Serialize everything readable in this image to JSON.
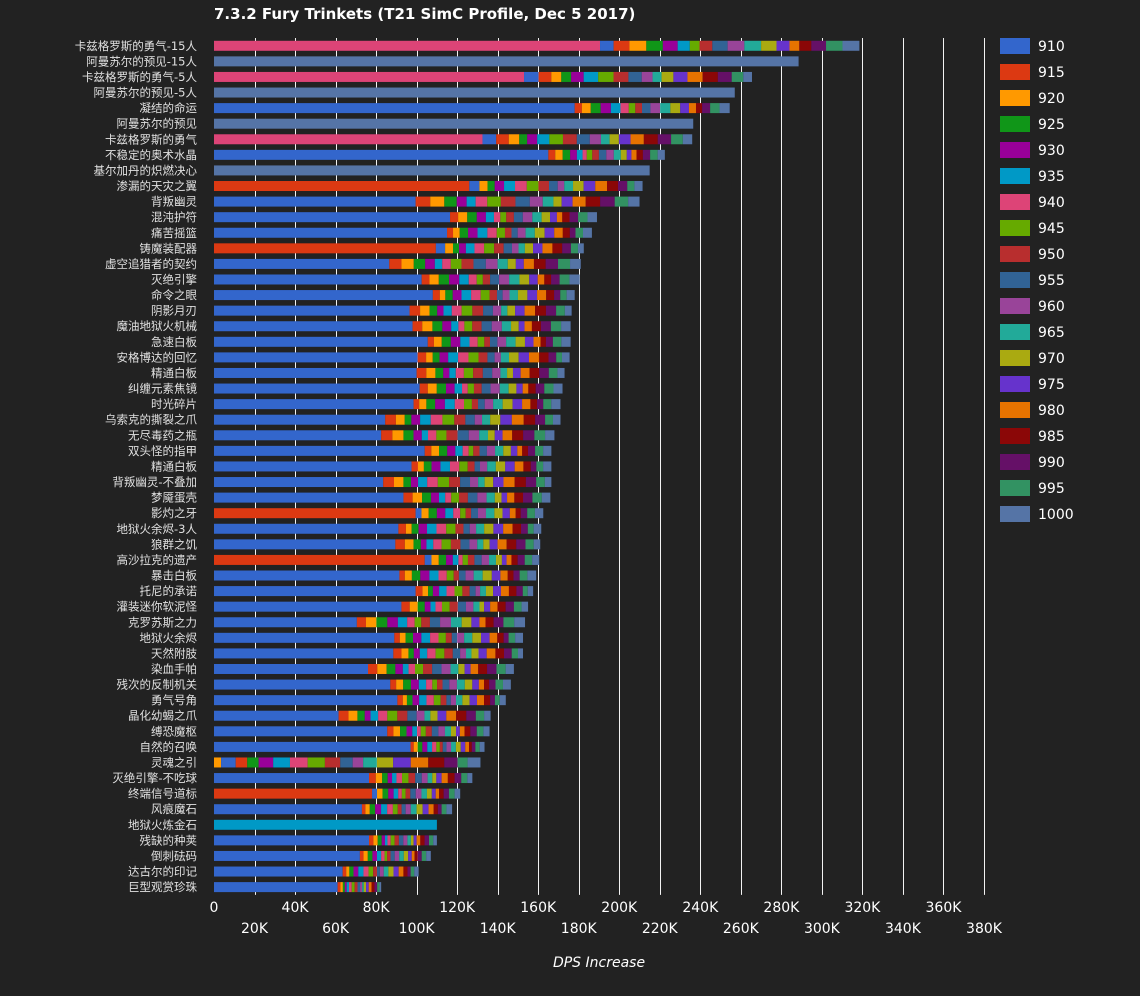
{
  "chart_data": {
    "type": "bar",
    "stacked": true,
    "orientation": "horizontal",
    "title": "7.3.2 Fury Trinkets (T21 SimC Profile, Dec 5 2017)",
    "xlabel": "DPS Increase",
    "ylabel": "",
    "xlim": [
      0,
      380000
    ],
    "x_ticks": [
      0,
      20000,
      40000,
      60000,
      80000,
      100000,
      120000,
      140000,
      160000,
      180000,
      200000,
      220000,
      240000,
      260000,
      280000,
      300000,
      320000,
      340000,
      360000,
      380000
    ],
    "x_tick_labels": [
      "0",
      "20K",
      "40K",
      "60K",
      "80K",
      "100K",
      "120K",
      "140K",
      "160K",
      "180K",
      "200K",
      "220K",
      "240K",
      "260K",
      "280K",
      "300K",
      "320K",
      "340K",
      "360K",
      "380K"
    ],
    "grid": true,
    "legend_position": "right",
    "series": [
      {
        "name": "910",
        "color": "#3366cc"
      },
      {
        "name": "915",
        "color": "#dc3912"
      },
      {
        "name": "920",
        "color": "#ff9900"
      },
      {
        "name": "925",
        "color": "#109618"
      },
      {
        "name": "930",
        "color": "#990099"
      },
      {
        "name": "935",
        "color": "#0099c6"
      },
      {
        "name": "940",
        "color": "#dd4477"
      },
      {
        "name": "945",
        "color": "#66aa00"
      },
      {
        "name": "950",
        "color": "#b82e2e"
      },
      {
        "name": "955",
        "color": "#316395"
      },
      {
        "name": "960",
        "color": "#994499"
      },
      {
        "name": "965",
        "color": "#22aa99"
      },
      {
        "name": "970",
        "color": "#aaaa11"
      },
      {
        "name": "975",
        "color": "#6633cc"
      },
      {
        "name": "980",
        "color": "#e67300"
      },
      {
        "name": "985",
        "color": "#8b0707"
      },
      {
        "name": "990",
        "color": "#651067"
      },
      {
        "name": "995",
        "color": "#329262"
      },
      {
        "name": "1000",
        "color": "#5574a6"
      }
    ],
    "bars": [
      {
        "label": "卡兹格罗斯的勇气-15人",
        "base": 940,
        "start": 190500,
        "total": 318500
      },
      {
        "label": "阿曼苏尔的预见-15人",
        "base": 1000,
        "start": 288500,
        "total": 288500
      },
      {
        "label": "卡兹格罗斯的勇气-5人",
        "base": 940,
        "start": 153000,
        "total": 265500
      },
      {
        "label": "阿曼苏尔的预见-5人",
        "base": 1000,
        "start": 257000,
        "total": 257000
      },
      {
        "label": "凝结的命运",
        "base": 910,
        "start": 178000,
        "total": 254500
      },
      {
        "label": "阿曼苏尔的预见",
        "base": 1000,
        "start": 236500,
        "total": 236500
      },
      {
        "label": "卡兹格罗斯的勇气",
        "base": 940,
        "start": 132500,
        "total": 236000
      },
      {
        "label": "不稳定的奥术水晶",
        "base": 910,
        "start": 165000,
        "total": 222500
      },
      {
        "label": "基尔加丹的炽燃决心",
        "base": 1000,
        "start": 215000,
        "total": 215000
      },
      {
        "label": "渗漏的天灾之翼",
        "base": 915,
        "start": 126000,
        "total": 211500
      },
      {
        "label": "背叛幽灵",
        "base": 910,
        "start": 99500,
        "total": 210000
      },
      {
        "label": "混沌护符",
        "base": 910,
        "start": 116500,
        "total": 189000
      },
      {
        "label": "痛苦摇篮",
        "base": 910,
        "start": 115000,
        "total": 186500
      },
      {
        "label": "铸魔装配器",
        "base": 915,
        "start": 109500,
        "total": 182500
      },
      {
        "label": "虚空追猎者的契约",
        "base": 910,
        "start": 86500,
        "total": 181000
      },
      {
        "label": "灭绝引擎",
        "base": 910,
        "start": 102500,
        "total": 180500
      },
      {
        "label": "命令之眼",
        "base": 910,
        "start": 108000,
        "total": 178000
      },
      {
        "label": "阴影月刃",
        "base": 910,
        "start": 96500,
        "total": 176500
      },
      {
        "label": "魔油地狱火机械",
        "base": 910,
        "start": 98000,
        "total": 176000
      },
      {
        "label": "急速白板",
        "base": 910,
        "start": 105500,
        "total": 176000
      },
      {
        "label": "安格博达的回忆",
        "base": 910,
        "start": 100500,
        "total": 175500
      },
      {
        "label": "精通白板",
        "base": 910,
        "start": 100000,
        "total": 173000
      },
      {
        "label": "纠缠元素焦镜",
        "base": 910,
        "start": 101500,
        "total": 172000
      },
      {
        "label": "时光碎片",
        "base": 910,
        "start": 98500,
        "total": 171000
      },
      {
        "label": "乌索克的撕裂之爪",
        "base": 910,
        "start": 84500,
        "total": 171000
      },
      {
        "label": "无尽毒药之瓶",
        "base": 910,
        "start": 82500,
        "total": 168000
      },
      {
        "label": "双头怪的指甲",
        "base": 910,
        "start": 104000,
        "total": 166500
      },
      {
        "label": "精通白板",
        "base": 910,
        "start": 97500,
        "total": 166500
      },
      {
        "label": "背叛幽灵-不叠加",
        "base": 910,
        "start": 83500,
        "total": 166500
      },
      {
        "label": "梦魇蛋壳",
        "base": 910,
        "start": 93500,
        "total": 166000
      },
      {
        "label": "影灼之牙",
        "base": 915,
        "start": 99500,
        "total": 162500
      },
      {
        "label": "地狱火余烬-3人",
        "base": 910,
        "start": 91000,
        "total": 161500
      },
      {
        "label": "狼群之饥",
        "base": 910,
        "start": 89500,
        "total": 161000
      },
      {
        "label": "高沙拉克的遗产",
        "base": 915,
        "start": 104000,
        "total": 160500
      },
      {
        "label": "暴击白板",
        "base": 910,
        "start": 91500,
        "total": 159000
      },
      {
        "label": "托尼的承诺",
        "base": 910,
        "start": 99500,
        "total": 157500
      },
      {
        "label": "灌装迷你软泥怪",
        "base": 910,
        "start": 92500,
        "total": 155000
      },
      {
        "label": "克罗苏斯之力",
        "base": 910,
        "start": 70500,
        "total": 153500
      },
      {
        "label": "地狱火余烬",
        "base": 910,
        "start": 89000,
        "total": 152500
      },
      {
        "label": "天然附肢",
        "base": 910,
        "start": 88500,
        "total": 152500
      },
      {
        "label": "染血手帕",
        "base": 910,
        "start": 76000,
        "total": 148000
      },
      {
        "label": "残次的反制机关",
        "base": 910,
        "start": 87000,
        "total": 146500
      },
      {
        "label": "勇气号角",
        "base": 910,
        "start": 90500,
        "total": 144000
      },
      {
        "label": "晶化幼蝎之爪",
        "base": 910,
        "start": 61500,
        "total": 136500
      },
      {
        "label": "缚恐魔枢",
        "base": 910,
        "start": 85500,
        "total": 136000
      },
      {
        "label": "自然的召唤",
        "base": 910,
        "start": 97000,
        "total": 133500
      },
      {
        "label": "灵魂之引",
        "base": 920,
        "start": 3500,
        "total": 131500
      },
      {
        "label": "灭绝引擎-不吃球",
        "base": 910,
        "start": 76500,
        "total": 127500
      },
      {
        "label": "终端信号道标",
        "base": 915,
        "start": 78000,
        "total": 121500
      },
      {
        "label": "风痕魔石",
        "base": 910,
        "start": 73000,
        "total": 117500
      },
      {
        "label": "地狱火炼金石",
        "base": 935,
        "start": 110000,
        "total": 110000
      },
      {
        "label": "残缺的种荚",
        "base": 910,
        "start": 76500,
        "total": 110000
      },
      {
        "label": "倒刺砝码",
        "base": 910,
        "start": 72000,
        "total": 107000
      },
      {
        "label": "达古尔的印记",
        "base": 910,
        "start": 63500,
        "total": 101000
      },
      {
        "label": "巨型观赏珍珠",
        "base": 910,
        "start": 61000,
        "total": 82500
      }
    ]
  }
}
